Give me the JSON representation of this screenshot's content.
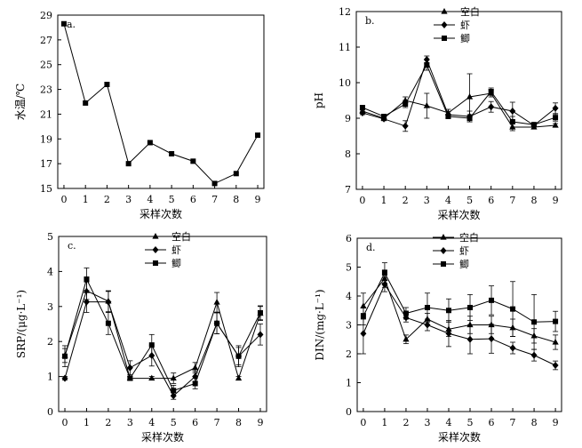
{
  "chart_data": [
    {
      "type": "line",
      "panel_label": "a.",
      "x": [
        0,
        1,
        2,
        3,
        4,
        5,
        6,
        7,
        8,
        9
      ],
      "xticks": [
        "0",
        "1",
        "2",
        "3",
        "4",
        "5",
        "6",
        "7",
        "8",
        "9"
      ],
      "yticks": [
        "15",
        "17",
        "19",
        "21",
        "23",
        "25",
        "27",
        "29"
      ],
      "ylim": [
        15,
        29
      ],
      "xlabel": "采样次数",
      "ylabel": "水温/℃",
      "series": [
        {
          "name": "",
          "marker": "square",
          "values": [
            28.3,
            21.9,
            23.4,
            17.0,
            18.7,
            17.8,
            17.2,
            15.4,
            16.2,
            19.3
          ]
        }
      ],
      "legend": []
    },
    {
      "type": "line",
      "panel_label": "b.",
      "x": [
        0,
        1,
        2,
        3,
        4,
        5,
        6,
        7,
        8,
        9
      ],
      "xticks": [
        "0",
        "1",
        "2",
        "3",
        "4",
        "5",
        "6",
        "7",
        "8",
        "9"
      ],
      "yticks": [
        "7",
        "8",
        "9",
        "10",
        "11",
        "12"
      ],
      "ylim": [
        7,
        12
      ],
      "xlabel": "采样次数",
      "ylabel": "pH",
      "series": [
        {
          "name": "空白",
          "marker": "triangle",
          "values": [
            9.2,
            9.0,
            9.5,
            9.35,
            9.15,
            9.6,
            9.7,
            8.75,
            8.75,
            8.8
          ],
          "errors": [
            0.05,
            0.05,
            0.1,
            0.35,
            0.1,
            0.65,
            0.1,
            0.1,
            0.05,
            0.05
          ]
        },
        {
          "name": "虾",
          "marker": "diamond",
          "values": [
            9.15,
            8.98,
            8.78,
            10.65,
            9.1,
            9.05,
            9.32,
            9.2,
            8.8,
            9.28
          ],
          "errors": [
            0.05,
            0.05,
            0.15,
            0.1,
            0.08,
            0.15,
            0.15,
            0.25,
            0.05,
            0.15
          ]
        },
        {
          "name": "鲫",
          "marker": "square",
          "values": [
            9.3,
            9.05,
            9.4,
            10.5,
            9.05,
            9.0,
            9.75,
            8.9,
            8.82,
            9.02
          ],
          "errors": [
            0.05,
            0.05,
            0.1,
            0.15,
            0.05,
            0.1,
            0.1,
            0.15,
            0.05,
            0.1
          ]
        }
      ],
      "legend": [
        "空白",
        "虾",
        "鲫"
      ]
    },
    {
      "type": "line",
      "panel_label": "c.",
      "x": [
        0,
        1,
        2,
        3,
        4,
        5,
        6,
        7,
        8,
        9
      ],
      "xticks": [
        "0",
        "1",
        "2",
        "3",
        "4",
        "5",
        "6",
        "7",
        "8",
        "9"
      ],
      "yticks": [
        "0",
        "1",
        "2",
        "3",
        "4",
        "5"
      ],
      "ylim": [
        0,
        5
      ],
      "xlabel": "采样次数",
      "ylabel": "SRP/(μg·L⁻¹)",
      "series": [
        {
          "name": "空白",
          "marker": "triangle",
          "values": [
            1.6,
            3.45,
            3.15,
            0.95,
            0.95,
            0.95,
            1.25,
            3.12,
            0.95,
            2.8
          ],
          "errors": [
            0.2,
            0.25,
            0.3,
            0.05,
            0.05,
            0.15,
            0.15,
            0.28,
            0.05,
            0.2
          ]
        },
        {
          "name": "虾",
          "marker": "diamond",
          "values": [
            0.95,
            3.13,
            3.13,
            1.25,
            1.6,
            0.45,
            1.0,
            2.52,
            1.58,
            2.2
          ],
          "errors": [
            0.05,
            0.3,
            0.3,
            0.2,
            0.3,
            0.1,
            0.15,
            0.3,
            0.25,
            0.3
          ]
        },
        {
          "name": "鲫",
          "marker": "square",
          "values": [
            1.58,
            3.78,
            2.52,
            0.95,
            1.9,
            0.6,
            0.8,
            2.52,
            1.58,
            2.82
          ],
          "errors": [
            0.3,
            0.32,
            0.32,
            0.05,
            0.3,
            0.15,
            0.15,
            0.3,
            0.3,
            0.2
          ]
        }
      ],
      "legend": [
        "空白",
        "虾",
        "鲫"
      ]
    },
    {
      "type": "line",
      "panel_label": "d.",
      "x": [
        0,
        1,
        2,
        3,
        4,
        5,
        6,
        7,
        8,
        9
      ],
      "xticks": [
        "0",
        "1",
        "2",
        "3",
        "4",
        "5",
        "6",
        "7",
        "8",
        "9"
      ],
      "yticks": [
        "0",
        "1",
        "2",
        "3",
        "4",
        "5",
        "6"
      ],
      "ylim": [
        0,
        6
      ],
      "xlabel": "采样次数",
      "ylabel": "DIN/(mg·L⁻¹)",
      "series": [
        {
          "name": "空白",
          "marker": "triangle",
          "values": [
            3.65,
            4.6,
            2.5,
            3.2,
            2.85,
            3.0,
            3.0,
            2.9,
            2.62,
            2.4
          ],
          "errors": [
            0.45,
            0.3,
            0.15,
            0.2,
            0.25,
            0.3,
            0.3,
            0.3,
            0.25,
            0.25
          ]
        },
        {
          "name": "虾",
          "marker": "diamond",
          "values": [
            2.7,
            4.4,
            3.25,
            3.0,
            2.7,
            2.5,
            2.52,
            2.2,
            1.95,
            1.6
          ],
          "errors": [
            0.7,
            0.25,
            0.15,
            0.2,
            0.45,
            0.5,
            0.5,
            0.2,
            0.2,
            0.15
          ]
        },
        {
          "name": "鲫",
          "marker": "square",
          "values": [
            3.3,
            4.8,
            3.4,
            3.6,
            3.5,
            3.6,
            3.85,
            3.55,
            3.1,
            3.12
          ],
          "errors": [
            0.3,
            0.35,
            0.2,
            0.5,
            0.4,
            0.45,
            0.5,
            0.95,
            0.95,
            0.35
          ]
        }
      ],
      "legend": [
        "空白",
        "虾",
        "鲫"
      ]
    }
  ]
}
